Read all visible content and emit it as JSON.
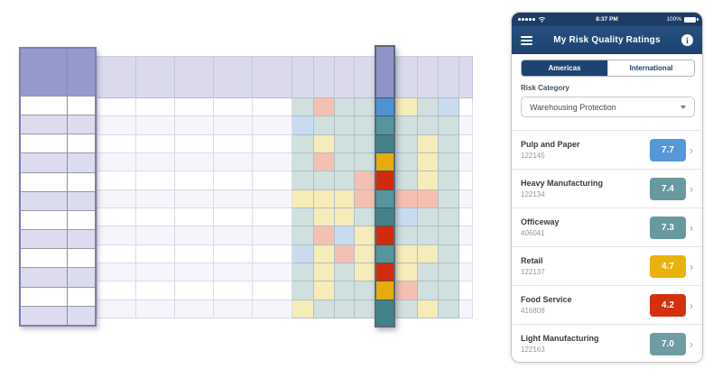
{
  "grid_illustration": {
    "left_panel": {
      "columns": 2,
      "rows": 12,
      "header_color": "#9699cb",
      "alt_row_color": "#dcdcee"
    },
    "main_grid": {
      "rows": 12,
      "header_color": "#dadaec",
      "alt_row_color": "#f5f5fb",
      "palette": {
        "t": "#cfe0df",
        "y": "#f6ecba",
        "s": "#f4c0b2",
        "b": "#c9dcef"
      },
      "block_rows": [
        "tsttytb",
        "btttttt",
        "tytttyt",
        "tstttyt",
        "tttstyt",
        "yyyssst",
        "tyytbtt",
        "tsbyttt",
        "bysyyyt",
        "tytyytt",
        "tyttstt",
        "yttttyt"
      ]
    },
    "highlight_column": {
      "tab_color": "#9093c7",
      "cell_colors": [
        "#4d93d3",
        "#56949e",
        "#43828a",
        "#e6ac0d",
        "#cf2c0e",
        "#56949e",
        "#43828a",
        "#cf2c0e",
        "#56949e",
        "#cf2c0e",
        "#e6ac0d",
        "#43828a"
      ]
    }
  },
  "phone": {
    "status_bar": {
      "time": "8:37 PM",
      "battery_level": "100%"
    },
    "nav_bar": {
      "title": "My Risk Quality Ratings",
      "info_glyph": "i"
    },
    "tabs": {
      "americas": "Americas",
      "international": "International"
    },
    "risk_category": {
      "label": "Risk Category",
      "selected": "Warehousing Protection"
    },
    "ratings": [
      {
        "name": "Pulp and Paper",
        "code": "122145",
        "score": "7.7",
        "color": "#5597d7"
      },
      {
        "name": "Heavy Manufacturing",
        "code": "122134",
        "score": "7.4",
        "color": "#67999f"
      },
      {
        "name": "Officeway",
        "code": "406041",
        "score": "7.3",
        "color": "#67999f"
      },
      {
        "name": "Retail",
        "code": "122137",
        "score": "4.7",
        "color": "#e9b20d"
      },
      {
        "name": "Food Service",
        "code": "416808",
        "score": "4.2",
        "color": "#d4300f"
      },
      {
        "name": "Light Manufacturing",
        "code": "122163",
        "score": "7.0",
        "color": "#6f9da4"
      }
    ]
  }
}
